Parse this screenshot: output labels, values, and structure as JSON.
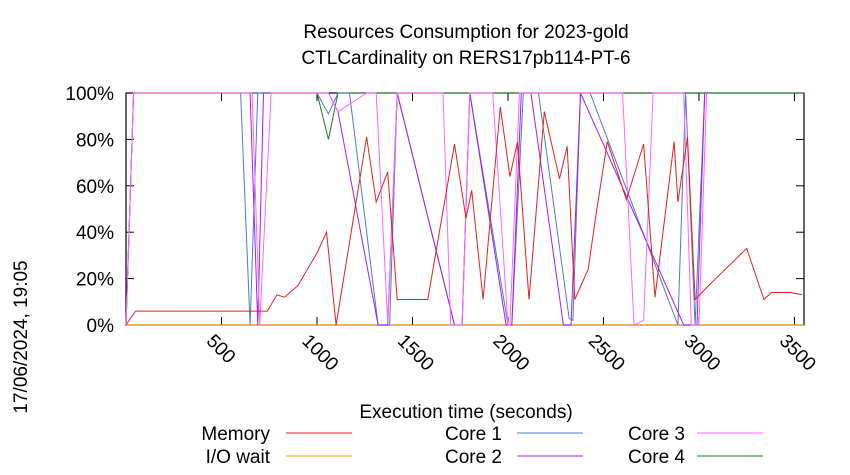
{
  "chart_data": {
    "type": "line",
    "title_lines": [
      "Resources Consumption for 2023-gold",
      "CTLCardinality on RERS17pb114-PT-6"
    ],
    "xlabel": "Execution time (seconds)",
    "side_label": "17/06/2024, 19:05",
    "xlim": [
      0,
      3550
    ],
    "ylim": [
      0,
      100
    ],
    "x_ticks": [
      500,
      1000,
      1500,
      2000,
      2500,
      3000,
      3500
    ],
    "y_ticks": [
      0,
      20,
      40,
      60,
      80,
      100
    ],
    "y_tick_labels": [
      "0%",
      "20%",
      "40%",
      "60%",
      "80%",
      "100%"
    ],
    "grid": false,
    "legend_position": "bottom",
    "series": [
      {
        "name": "Memory",
        "color": "#e3211c",
        "x": [
          0,
          50,
          200,
          350,
          500,
          600,
          700,
          740,
          790,
          830,
          900,
          950,
          1000,
          1050,
          1100,
          1260,
          1310,
          1370,
          1420,
          1470,
          1580,
          1720,
          1780,
          1810,
          1870,
          1960,
          2010,
          2050,
          2110,
          2190,
          2270,
          2310,
          2350,
          2420,
          2460,
          2520,
          2620,
          2710,
          2770,
          2870,
          2890,
          2940,
          2980,
          3050,
          3100,
          3250,
          3340,
          3380,
          3420,
          3480,
          3540
        ],
        "y": [
          0,
          6,
          6,
          6,
          6,
          6,
          6,
          6,
          13,
          12,
          17,
          24,
          31,
          40,
          0,
          81,
          53,
          66,
          11,
          11,
          11,
          78,
          46,
          58,
          11,
          94,
          64,
          79,
          11,
          92,
          63,
          77,
          11,
          24,
          47,
          79,
          54,
          78,
          12,
          79,
          53,
          81,
          11,
          17,
          21,
          33,
          11,
          14,
          14,
          14,
          13
        ]
      },
      {
        "name": "I/O wait",
        "color": "#ff9900",
        "x": [
          0,
          3550
        ],
        "y": [
          0,
          0
        ]
      },
      {
        "name": "Core 1",
        "color": "#4e7ac7",
        "x": [
          0,
          40,
          600,
          650,
          690,
          720,
          1000,
          1060,
          1110,
          1170,
          1320,
          1380,
          1420,
          1720,
          1760,
          1800,
          2000,
          2020,
          2080,
          2120,
          2160,
          2320,
          2340,
          2380,
          2430,
          2890,
          2930,
          2980,
          3030
        ],
        "y": [
          0,
          100,
          100,
          0,
          100,
          100,
          100,
          91,
          100,
          100,
          0,
          0,
          100,
          0,
          0,
          100,
          0,
          0,
          100,
          100,
          100,
          3,
          2,
          100,
          100,
          0,
          100,
          0,
          100
        ]
      },
      {
        "name": "Core 2",
        "color": "#a020f0",
        "x": [
          0,
          40,
          650,
          690,
          720,
          1000,
          1060,
          1110,
          1320,
          1370,
          1420,
          1720,
          1760,
          1800,
          1990,
          2020,
          2070,
          2120,
          2290,
          2330,
          2380,
          2920,
          2960,
          2990,
          3030
        ],
        "y": [
          0,
          100,
          100,
          0,
          100,
          100,
          100,
          92,
          0,
          0,
          100,
          0,
          0,
          100,
          0,
          0,
          100,
          100,
          0,
          0,
          100,
          0,
          0,
          0,
          100
        ]
      },
      {
        "name": "Core 3",
        "color": "#ff66ff",
        "x": [
          0,
          40,
          660,
          700,
          760,
          1000,
          1060,
          1110,
          1260,
          1310,
          1370,
          1420,
          1660,
          1700,
          1760,
          1800,
          1870,
          1920,
          2000,
          2010,
          2060,
          2110,
          2280,
          2320,
          2380,
          2600,
          2660,
          2710,
          2760,
          2810,
          2920,
          2960,
          3000,
          3040
        ],
        "y": [
          0,
          100,
          100,
          0,
          100,
          100,
          100,
          92,
          100,
          100,
          1,
          100,
          100,
          0,
          0,
          100,
          100,
          100,
          0,
          0,
          100,
          100,
          100,
          100,
          100,
          100,
          0,
          2,
          100,
          100,
          100,
          0,
          0,
          100
        ]
      },
      {
        "name": "Core 4",
        "color": "#1f7a1f",
        "x": [
          0,
          40,
          1000,
          1060,
          1110,
          3550
        ],
        "y": [
          0,
          100,
          100,
          80,
          100,
          100
        ]
      }
    ]
  }
}
